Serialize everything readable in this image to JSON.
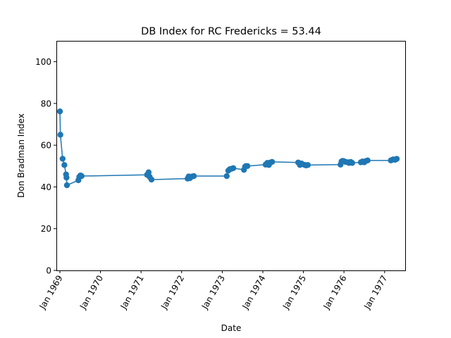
{
  "chart_data": {
    "type": "line",
    "title": "DB Index for RC Fredericks = 53.44",
    "xlabel": "Date",
    "ylabel": "Don Bradman Index",
    "ylim": [
      0,
      110
    ],
    "xlim": [
      "1968-11-30",
      "1977-07-05"
    ],
    "yticks": [
      0,
      20,
      40,
      60,
      80,
      100
    ],
    "xticks": [
      "1969-01-01",
      "1970-01-01",
      "1971-01-01",
      "1972-01-01",
      "1973-01-01",
      "1974-01-01",
      "1975-01-01",
      "1976-01-01",
      "1977-01-01"
    ],
    "xtick_labels": [
      "Jan 1969",
      "Jan 1970",
      "Jan 1971",
      "Jan 1972",
      "Jan 1973",
      "Jan 1974",
      "Jan 1975",
      "Jan 1976",
      "Jan 1977"
    ],
    "grid": false,
    "color": "#1f77b4",
    "series": [
      {
        "x": [
          "1969-01-01",
          "1969-01-05",
          "1969-01-25",
          "1969-02-10",
          "1969-02-25",
          "1969-03-01",
          "1969-03-05",
          "1969-06-16",
          "1969-06-24",
          "1969-07-05",
          "1969-07-15",
          "1971-02-24",
          "1971-03-10",
          "1971-03-20",
          "1971-04-05",
          "1972-02-24",
          "1972-03-05",
          "1972-03-15",
          "1972-04-05",
          "1972-04-20",
          "1973-02-10",
          "1973-02-24",
          "1973-03-10",
          "1973-03-25",
          "1973-04-10",
          "1973-07-15",
          "1973-07-25",
          "1973-08-01",
          "1973-08-15",
          "1974-01-26",
          "1974-02-10",
          "1974-02-24",
          "1974-03-10",
          "1974-03-25",
          "1974-11-15",
          "1974-12-01",
          "1974-12-15",
          "1975-01-10",
          "1975-01-25",
          "1975-02-10",
          "1975-12-01",
          "1975-12-10",
          "1975-12-20",
          "1976-01-01",
          "1976-01-15",
          "1976-02-05",
          "1976-02-15",
          "1976-03-01",
          "1976-03-15",
          "1976-06-01",
          "1976-06-16",
          "1976-07-01",
          "1976-07-16",
          "1976-08-01",
          "1977-02-26",
          "1977-03-10",
          "1977-03-20",
          "1977-04-05",
          "1977-04-20"
        ],
        "y": [
          76.2,
          65.0,
          53.5,
          50.5,
          46.0,
          44.5,
          40.8,
          43.2,
          44.8,
          45.5,
          45.2,
          45.8,
          47.0,
          44.8,
          43.5,
          44.0,
          45.0,
          44.2,
          45.0,
          45.2,
          45.2,
          47.8,
          48.5,
          48.7,
          49.0,
          48.2,
          49.7,
          50.0,
          50.0,
          50.7,
          51.5,
          50.5,
          51.7,
          52.0,
          51.7,
          50.5,
          51.2,
          50.6,
          50.3,
          50.5,
          50.7,
          52.2,
          52.5,
          52.3,
          52.0,
          51.8,
          51.5,
          52.0,
          51.5,
          51.8,
          52.2,
          51.8,
          52.4,
          52.7,
          52.7,
          53.0,
          53.2,
          53.0,
          53.44
        ]
      }
    ]
  }
}
